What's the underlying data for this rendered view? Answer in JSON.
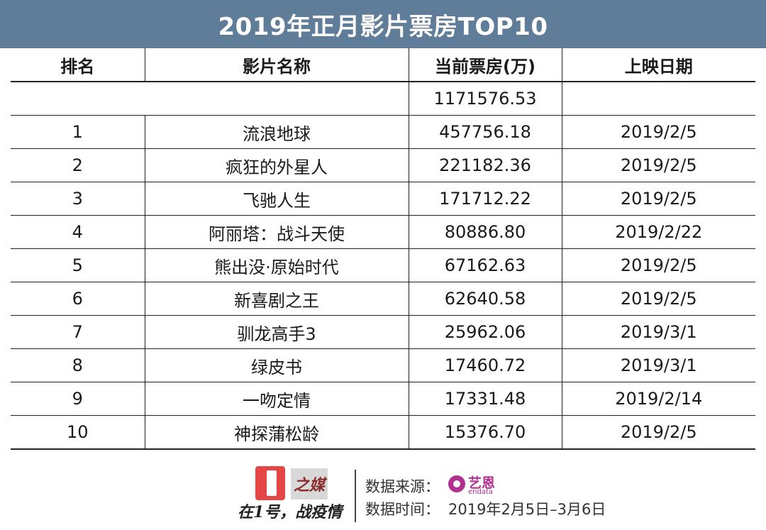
{
  "title": "2019年正月影片票房TOP10",
  "chart_data": {
    "type": "table",
    "columns": [
      "排名",
      "影片名称",
      "当前票房(万)",
      "上映日期"
    ],
    "total": "1171576.53",
    "rows": [
      {
        "rank": "1",
        "name": "流浪地球",
        "box": "457756.18",
        "date": "2019/2/5"
      },
      {
        "rank": "2",
        "name": "疯狂的外星人",
        "box": "221182.36",
        "date": "2019/2/5"
      },
      {
        "rank": "3",
        "name": "飞驰人生",
        "box": "171712.22",
        "date": "2019/2/5"
      },
      {
        "rank": "4",
        "name": "阿丽塔：战斗天使",
        "box": "80886.80",
        "date": "2019/2/22"
      },
      {
        "rank": "5",
        "name": "熊出没·原始时代",
        "box": "67162.63",
        "date": "2019/2/5"
      },
      {
        "rank": "6",
        "name": "新喜剧之王",
        "box": "62640.58",
        "date": "2019/2/5"
      },
      {
        "rank": "7",
        "name": "驯龙高手3",
        "box": "25962.06",
        "date": "2019/3/1"
      },
      {
        "rank": "8",
        "name": "绿皮书",
        "box": "17460.72",
        "date": "2019/3/1"
      },
      {
        "rank": "9",
        "name": "一吻定情",
        "box": "17331.48",
        "date": "2019/2/14"
      },
      {
        "rank": "10",
        "name": "神探蒲松龄",
        "box": "15376.70",
        "date": "2019/2/5"
      }
    ]
  },
  "footer": {
    "logo_text": "之媒",
    "slogan": "在1号，战疫情",
    "source_label": "数据来源：",
    "source_brand": "艺恩",
    "source_brand_sub": "endata",
    "time_label": "数据时间：",
    "time_value": "2019年2月5日–3月6日"
  },
  "colors": {
    "title_bg": "#5f7c98",
    "logo_red": "#e44545",
    "source_brand": "#b2308f"
  }
}
